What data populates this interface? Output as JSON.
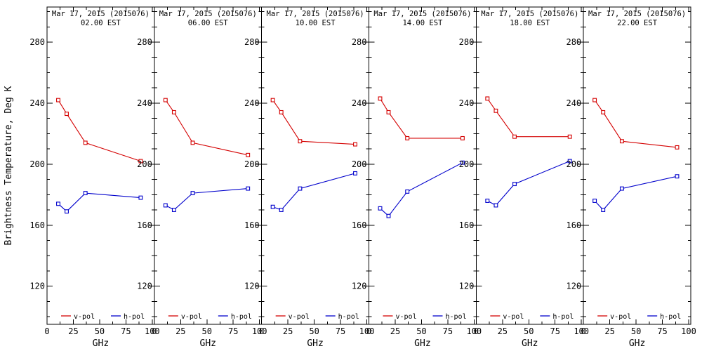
{
  "figure": {
    "ylabel": "Brightness Temperature, Deg K",
    "xlabel": "GHz",
    "background": "#ffffff",
    "axis_color": "#000000",
    "legend": {
      "v_label": "v-pol",
      "h_label": "h-pol",
      "v_color": "#d40000",
      "h_color": "#0000cc"
    }
  },
  "chart_data": {
    "type": "line",
    "x": [
      10.65,
      18.7,
      36.5,
      89
    ],
    "x_unit": "GHz",
    "xlabel": "GHz",
    "ylabel": "Brightness Temperature, Deg K",
    "xlim": [
      0,
      102
    ],
    "ylim": [
      95,
      303
    ],
    "xticks": [
      0,
      25,
      50,
      75,
      100
    ],
    "yticks": [
      120,
      160,
      200,
      240,
      280
    ],
    "x_minor_step": 12.5,
    "y_minor_step": 10,
    "grid": false,
    "legend_position": "bottom-inside",
    "marker": "open-square",
    "panels": [
      {
        "title": "Mar 17, 2015 (2015076)",
        "subtitle": "02.00 EST",
        "series": [
          {
            "name": "v-pol",
            "color": "#d40000",
            "values": [
              242,
              233,
              214,
              202
            ]
          },
          {
            "name": "h-pol",
            "color": "#0000cc",
            "values": [
              174,
              169,
              181,
              178
            ]
          }
        ]
      },
      {
        "title": "Mar 17, 2015 (2015076)",
        "subtitle": "06.00 EST",
        "series": [
          {
            "name": "v-pol",
            "color": "#d40000",
            "values": [
              242,
              234,
              214,
              206
            ]
          },
          {
            "name": "h-pol",
            "color": "#0000cc",
            "values": [
              173,
              170,
              181,
              184
            ]
          }
        ]
      },
      {
        "title": "Mar 17, 2015 (2015076)",
        "subtitle": "10.00 EST",
        "series": [
          {
            "name": "v-pol",
            "color": "#d40000",
            "values": [
              242,
              234,
              215,
              213
            ]
          },
          {
            "name": "h-pol",
            "color": "#0000cc",
            "values": [
              172,
              170,
              184,
              194
            ]
          }
        ]
      },
      {
        "title": "Mar 17, 2015 (2015076)",
        "subtitle": "14.00 EST",
        "series": [
          {
            "name": "v-pol",
            "color": "#d40000",
            "values": [
              243,
              234,
              217,
              217
            ]
          },
          {
            "name": "h-pol",
            "color": "#0000cc",
            "values": [
              171,
              166,
              182,
              201
            ]
          }
        ]
      },
      {
        "title": "Mar 17, 2015 (2015076)",
        "subtitle": "18.00 EST",
        "series": [
          {
            "name": "v-pol",
            "color": "#d40000",
            "values": [
              243,
              235,
              218,
              218
            ]
          },
          {
            "name": "h-pol",
            "color": "#0000cc",
            "values": [
              176,
              173,
              187,
              202
            ]
          }
        ]
      },
      {
        "title": "Mar 17, 2015 (2015076)",
        "subtitle": "22.00 EST",
        "series": [
          {
            "name": "v-pol",
            "color": "#d40000",
            "values": [
              242,
              234,
              215,
              211
            ]
          },
          {
            "name": "h-pol",
            "color": "#0000cc",
            "values": [
              176,
              170,
              184,
              192
            ]
          }
        ]
      }
    ]
  }
}
